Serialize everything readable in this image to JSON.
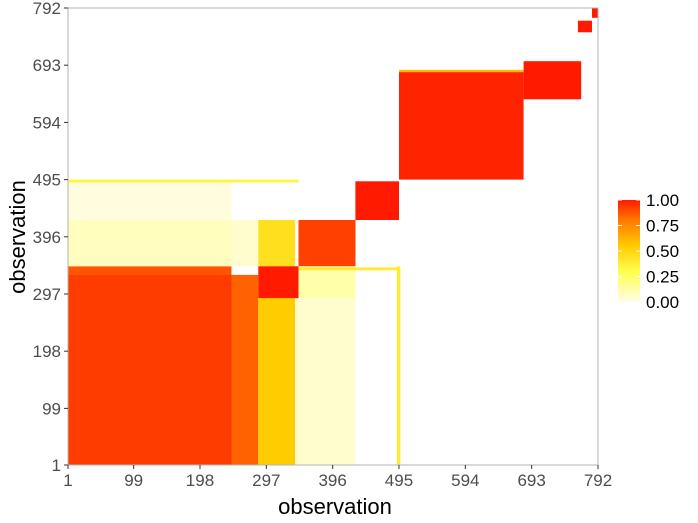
{
  "chart_data": {
    "type": "heatmap",
    "title": "",
    "xlabel": "observation",
    "ylabel": "observation",
    "x_ticks": [
      1,
      99,
      198,
      297,
      396,
      495,
      594,
      693,
      792
    ],
    "y_ticks": [
      1,
      99,
      198,
      297,
      396,
      495,
      594,
      693,
      792
    ],
    "xlim": [
      1,
      792
    ],
    "ylim": [
      1,
      792
    ],
    "colorscale": {
      "low_color": "#fffde8",
      "mid_color": "#ffee00",
      "high_color": "#ff0000",
      "range": [
        0,
        1
      ]
    },
    "legend": {
      "position": "right",
      "labels": [
        "1.00",
        "0.75",
        "0.50",
        "0.25",
        "0.00"
      ],
      "values": [
        1.0,
        0.75,
        0.5,
        0.25,
        0.0
      ]
    },
    "blocks": [
      {
        "x": [
          1,
          245
        ],
        "y": [
          1,
          330
        ],
        "value": 0.93
      },
      {
        "x": [
          1,
          245
        ],
        "y": [
          330,
          345
        ],
        "value": 0.88
      },
      {
        "x": [
          1,
          245
        ],
        "y": [
          345,
          425
        ],
        "value": 0.08
      },
      {
        "x": [
          1,
          245
        ],
        "y": [
          425,
          492
        ],
        "value": 0.02
      },
      {
        "x": [
          245,
          285
        ],
        "y": [
          1,
          330
        ],
        "value": 0.85
      },
      {
        "x": [
          245,
          285
        ],
        "y": [
          345,
          425
        ],
        "value": 0.05
      },
      {
        "x": [
          285,
          340
        ],
        "y": [
          1,
          290
        ],
        "value": 0.55
      },
      {
        "x": [
          285,
          340
        ],
        "y": [
          345,
          425
        ],
        "value": 0.45
      },
      {
        "x": [
          340,
          430
        ],
        "y": [
          1,
          290
        ],
        "value": 0.05
      },
      {
        "x": [
          340,
          430
        ],
        "y": [
          290,
          345
        ],
        "value": 0.12
      },
      {
        "x": [
          285,
          345
        ],
        "y": [
          290,
          345
        ],
        "value": 1.0
      },
      {
        "x": [
          345,
          430
        ],
        "y": [
          345,
          425
        ],
        "value": 0.92
      },
      {
        "x": [
          430,
          495
        ],
        "y": [
          425,
          492
        ],
        "value": 1.0
      },
      {
        "x": [
          495,
          681
        ],
        "y": [
          495,
          681
        ],
        "value": 0.98
      },
      {
        "x": [
          495,
          681
        ],
        "y": [
          681,
          685
        ],
        "value": 0.6
      },
      {
        "x": [
          681,
          767
        ],
        "y": [
          634,
          700
        ],
        "value": 1.0
      },
      {
        "x": [
          762,
          783
        ],
        "y": [
          750,
          770
        ],
        "value": 1.0
      },
      {
        "x": [
          783,
          792
        ],
        "y": [
          775,
          792
        ],
        "value": 1.0
      },
      {
        "x": [
          1,
          345
        ],
        "y": [
          490,
          495
        ],
        "value": 0.35
      },
      {
        "x": [
          345,
          495
        ],
        "y": [
          338,
          343
        ],
        "value": 0.4
      },
      {
        "x": [
          492,
          497
        ],
        "y": [
          1,
          345
        ],
        "value": 0.4
      }
    ]
  }
}
